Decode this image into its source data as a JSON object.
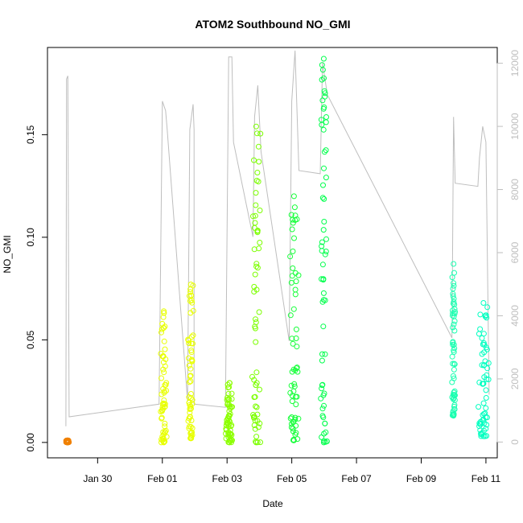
{
  "chart_data": {
    "type": "scatter",
    "title": "ATOM2 Southbound NO_GMI",
    "xlabel": "Date",
    "ylabel": "NO_GMI",
    "x_ticks": [
      {
        "label": "Jan 30",
        "day": 0
      },
      {
        "label": "Feb 01",
        "day": 2
      },
      {
        "label": "Feb 03",
        "day": 4
      },
      {
        "label": "Feb 05",
        "day": 6
      },
      {
        "label": "Feb 07",
        "day": 8
      },
      {
        "label": "Feb 09",
        "day": 10
      },
      {
        "label": "Feb 11",
        "day": 12
      }
    ],
    "xlim": [
      -1.55,
      12.35
    ],
    "ylim": [
      -0.0075,
      0.1925
    ],
    "y_ticks": [
      "0.00",
      "0.05",
      "0.10",
      "0.15"
    ],
    "y_tick_values": [
      0.0,
      0.05,
      0.1,
      0.15
    ],
    "y2lim": [
      -500,
      12500
    ],
    "y2_ticks": [
      "0",
      "2000",
      "4000",
      "6000",
      "8000",
      "10000",
      "12000"
    ],
    "y2_tick_values": [
      0,
      2000,
      4000,
      6000,
      8000,
      10000,
      12000
    ],
    "grid": false,
    "series": [
      {
        "color": "#F08000",
        "x_start": -0.98,
        "x_end": -0.88,
        "y_min": 0.0,
        "y_max": 0.001
      },
      {
        "color": "#E8FF00",
        "x_start": 1.94,
        "x_end": 2.15,
        "y_min": 0.0,
        "y_max": 0.064
      },
      {
        "color": "#E8FF00",
        "x_start": 2.78,
        "x_end": 2.98,
        "y_min": 0.002,
        "y_max": 0.077
      },
      {
        "color": "#8CFF00",
        "x_start": 3.95,
        "x_end": 4.2,
        "y_min": 0.0,
        "y_max": 0.029
      },
      {
        "color": "#7CFF00",
        "x_start": 4.75,
        "x_end": 5.05,
        "y_min": 0.0,
        "y_max": 0.154
      },
      {
        "color": "#17FF3A",
        "x_start": 5.92,
        "x_end": 6.22,
        "y_min": 0.001,
        "y_max": 0.12
      },
      {
        "color": "#00FF4C",
        "x_start": 6.88,
        "x_end": 7.1,
        "y_min": 0.0,
        "y_max": 0.187
      },
      {
        "color": "#1AFFB0",
        "x_start": 10.95,
        "x_end": 11.05,
        "y_min": 0.013,
        "y_max": 0.087
      },
      {
        "color": "#00FFC0",
        "x_start": 11.75,
        "x_end": 12.1,
        "y_min": 0.003,
        "y_max": 0.068
      }
    ],
    "altitude_series": {
      "color": "#bebebe",
      "axis": "right",
      "points": [
        [
          -0.98,
          500
        ],
        [
          -0.96,
          11500
        ],
        [
          -0.92,
          11600
        ],
        [
          -0.88,
          800
        ],
        [
          1.9,
          1200
        ],
        [
          2.0,
          10800
        ],
        [
          2.1,
          10500
        ],
        [
          2.15,
          9900
        ],
        [
          2.78,
          1300
        ],
        [
          2.85,
          9900
        ],
        [
          2.95,
          10700
        ],
        [
          2.98,
          9900
        ],
        [
          2.98,
          1200
        ],
        [
          3.95,
          1100
        ],
        [
          4.05,
          12200
        ],
        [
          4.15,
          12200
        ],
        [
          4.2,
          9500
        ],
        [
          4.8,
          6500
        ],
        [
          4.85,
          10300
        ],
        [
          4.95,
          11300
        ],
        [
          5.05,
          9200
        ],
        [
          5.92,
          3200
        ],
        [
          6.0,
          10800
        ],
        [
          6.1,
          12400
        ],
        [
          6.22,
          8600
        ],
        [
          6.88,
          8500
        ],
        [
          6.95,
          12000
        ],
        [
          7.1,
          11000
        ],
        [
          10.95,
          3300
        ],
        [
          11.0,
          10300
        ],
        [
          11.05,
          8200
        ],
        [
          11.75,
          8100
        ],
        [
          11.8,
          9000
        ],
        [
          11.9,
          10000
        ],
        [
          12.0,
          9500
        ],
        [
          12.1,
          1500
        ]
      ]
    }
  }
}
